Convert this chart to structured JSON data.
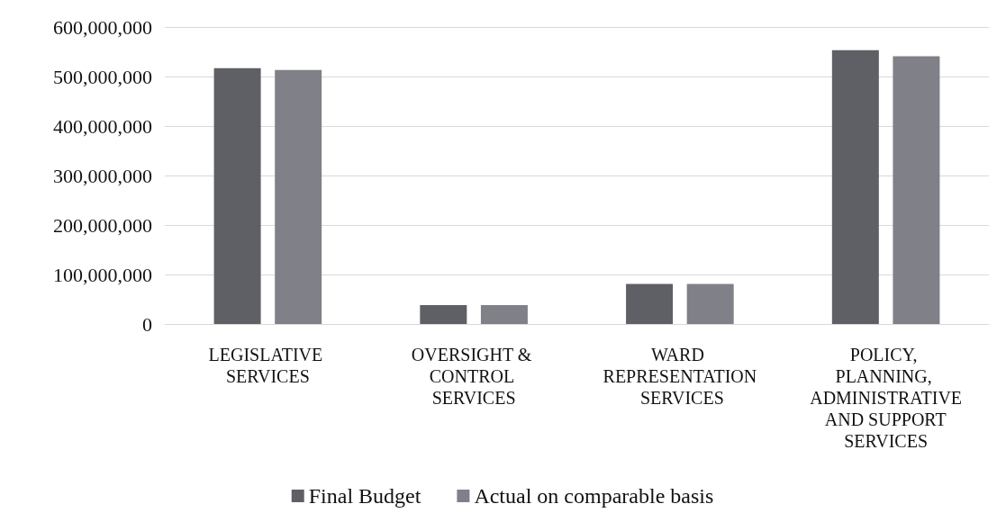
{
  "chart_data": {
    "type": "bar",
    "categories": [
      "LEGISLATIVE SERVICES",
      "OVERSIGHT & CONTROL SERVICES",
      "WARD REPRESENTATION SERVICES",
      "POLICY, PLANNING, ADMINISTRATIVE AND SUPPORT SERVICES"
    ],
    "series": [
      {
        "name": "Final Budget",
        "color": "#5f5f66",
        "values": [
          517000000,
          38000000,
          81000000,
          553000000
        ]
      },
      {
        "name": "Actual on comparable basis",
        "color": "#808088",
        "values": [
          513000000,
          38000000,
          81000000,
          541000000
        ]
      }
    ],
    "ylim": [
      0,
      600000000
    ],
    "yticks": [
      0,
      {
        "value": 100000000,
        "label": "100,000,000"
      },
      {
        "value": 200000000,
        "label": "200,000,000"
      },
      {
        "value": 300000000,
        "label": "300,000,000"
      },
      {
        "value": 400000000,
        "label": "400,000,000"
      },
      {
        "value": 500000000,
        "label": "500,000,000"
      },
      {
        "value": 600000000,
        "label": "600,000,000"
      }
    ],
    "grid": "y",
    "legend": "bottom"
  }
}
